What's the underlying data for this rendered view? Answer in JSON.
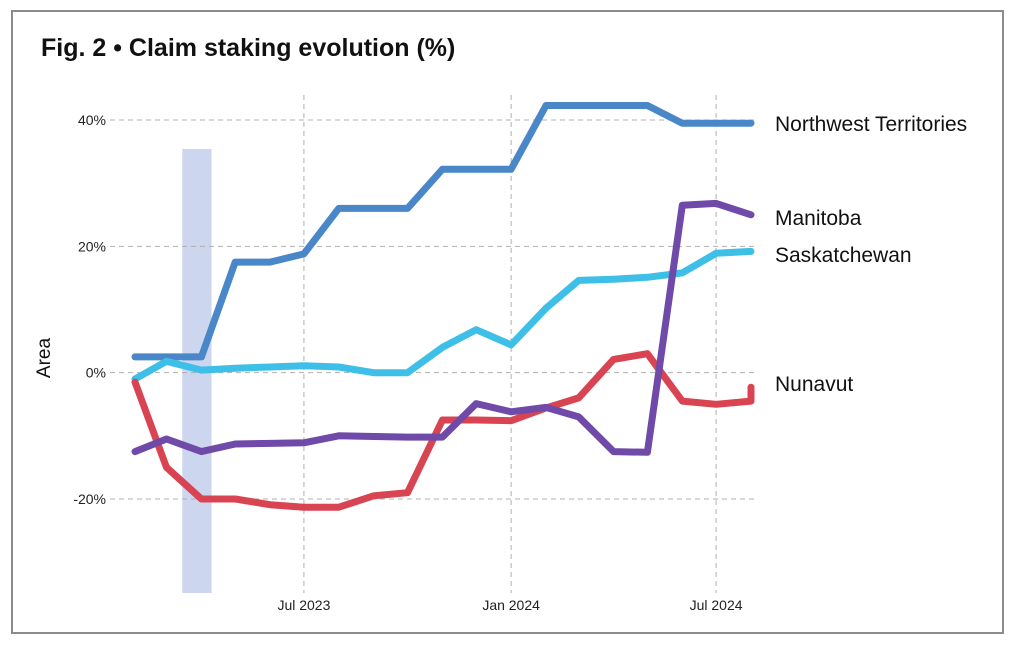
{
  "chart_data": {
    "type": "line",
    "title": "Fig. 2 • Claim staking evolution (%)",
    "xlabel": "",
    "ylabel": "Area",
    "x_ticks": [
      "Jul 2023",
      "Jan 2024",
      "Jul 2024"
    ],
    "y_ticks": [
      "-20%",
      "0%",
      "20%",
      "40%"
    ],
    "ylim": [
      -35,
      45
    ],
    "grid": true,
    "highlight_band": {
      "from": "2023-03-15",
      "to": "2023-04-10"
    },
    "series": [
      {
        "name": "Northwest Territories",
        "color": "#4a87c8",
        "x": [
          "2023-02-01",
          "2023-03-01",
          "2023-04-01",
          "2023-05-01",
          "2023-06-01",
          "2023-07-01",
          "2023-08-01",
          "2023-09-01",
          "2023-10-01",
          "2023-11-01",
          "2023-12-01",
          "2024-01-01",
          "2024-02-01",
          "2024-03-01",
          "2024-04-01",
          "2024-05-01",
          "2024-06-01",
          "2024-07-01",
          "2024-08-01"
        ],
        "y": [
          2.5,
          2.5,
          2.5,
          17.5,
          17.5,
          18.8,
          26,
          26,
          26,
          32.2,
          32.2,
          32.2,
          42.3,
          42.3,
          42.3,
          42.3,
          39.5,
          39.5,
          39.5
        ]
      },
      {
        "name": "Manitoba",
        "color": "#6f4aa8",
        "x": [
          "2023-02-01",
          "2023-03-01",
          "2023-04-01",
          "2023-05-01",
          "2023-06-01",
          "2023-07-01",
          "2023-08-01",
          "2023-09-01",
          "2023-10-01",
          "2023-11-01",
          "2023-12-01",
          "2024-01-01",
          "2024-02-01",
          "2024-03-01",
          "2024-04-01",
          "2024-05-01",
          "2024-06-01",
          "2024-07-01",
          "2024-08-01"
        ],
        "y": [
          -12.5,
          -10.5,
          -12.5,
          -11.3,
          -11.2,
          -11.1,
          -10,
          -10.1,
          -10.2,
          -10.2,
          -4.9,
          -6.2,
          -5.5,
          -7,
          -12.5,
          -12.6,
          26.5,
          26.8,
          25
        ]
      },
      {
        "name": "Saskatchewan",
        "color": "#3ebfe8",
        "x": [
          "2023-02-01",
          "2023-03-01",
          "2023-04-01",
          "2023-05-01",
          "2023-06-01",
          "2023-07-01",
          "2023-08-01",
          "2023-09-01",
          "2023-10-01",
          "2023-11-01",
          "2023-12-01",
          "2024-01-01",
          "2024-02-01",
          "2024-03-01",
          "2024-04-01",
          "2024-05-01",
          "2024-06-01",
          "2024-07-01",
          "2024-08-01"
        ],
        "y": [
          -1,
          1.8,
          0.4,
          0.7,
          0.9,
          1.1,
          0.9,
          0,
          0,
          4,
          6.8,
          4.4,
          10.2,
          14.6,
          14.8,
          15.1,
          15.8,
          18.9,
          19.2
        ]
      },
      {
        "name": "Nunavut",
        "color": "#d94452",
        "x": [
          "2023-02-01",
          "2023-03-01",
          "2023-04-01",
          "2023-05-01",
          "2023-06-01",
          "2023-07-01",
          "2023-08-01",
          "2023-09-01",
          "2023-10-01",
          "2023-11-01",
          "2023-12-01",
          "2024-01-01",
          "2024-02-01",
          "2024-03-01",
          "2024-04-01",
          "2024-05-01",
          "2024-06-01",
          "2024-07-01",
          "2024-08-01"
        ],
        "y": [
          -1.5,
          -15,
          -20,
          -20,
          -20.9,
          -21.3,
          -21.3,
          -19.5,
          -19,
          -7.5,
          -7.5,
          -7.6,
          -5.6,
          -4,
          2.1,
          3,
          -4.5,
          -5,
          -4.5
        ]
      }
    ],
    "extra_point": {
      "series": "Nunavut",
      "x": "2024-09-01",
      "y": -2.3
    }
  }
}
